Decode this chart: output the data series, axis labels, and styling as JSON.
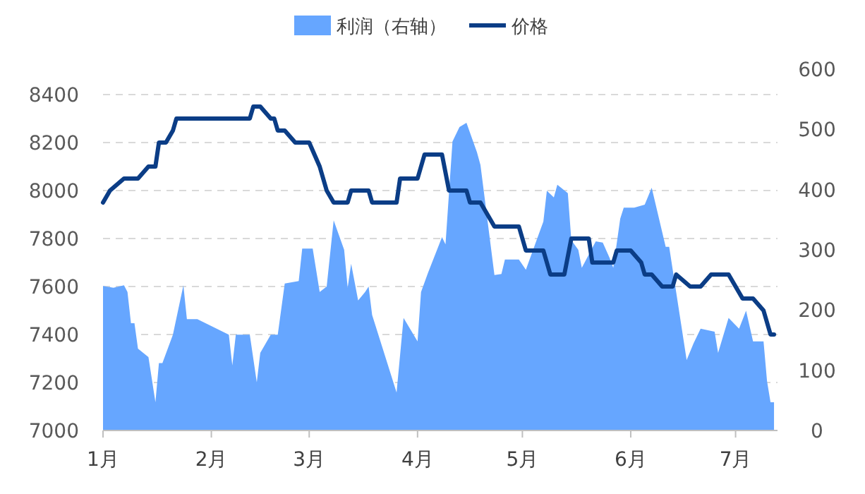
{
  "chart_data": {
    "type": "line",
    "legend": "top",
    "grid": "y",
    "xlim": [
      "--01-01",
      "--07-13"
    ],
    "xticks": [
      {
        "value": "--01-01",
        "label": "1月"
      },
      {
        "value": "--02-01",
        "label": "2月"
      },
      {
        "value": "--03-01",
        "label": "3月"
      },
      {
        "value": "--04-01",
        "label": "4月"
      },
      {
        "value": "--05-01",
        "label": "5月"
      },
      {
        "value": "--06-01",
        "label": "6月"
      },
      {
        "value": "--07-01",
        "label": "7月"
      }
    ],
    "ylim": [
      7000,
      8400
    ],
    "yticks": [
      7000,
      7200,
      7400,
      7600,
      7800,
      8000,
      8200,
      8400
    ],
    "y2lim": [
      0,
      600
    ],
    "y2ticks": [
      0,
      100,
      200,
      300,
      400,
      500,
      600
    ],
    "series": [
      {
        "name": "利润（右轴）",
        "type": "area",
        "axis": "y2",
        "color": "#66a6ff",
        "x": [
          "--01-01",
          "--01-04",
          "--01-07",
          "--01-08",
          "--01-09",
          "--01-10",
          "--01-11",
          "--01-14",
          "--01-16",
          "--01-17",
          "--01-18",
          "--01-21",
          "--01-24",
          "--01-25",
          "--01-28",
          "--02-06",
          "--02-07",
          "--02-08",
          "--02-12",
          "--02-14",
          "--02-15",
          "--02-18",
          "--02-20",
          "--02-22",
          "--02-26",
          "--02-27",
          "--03-02",
          "--03-04",
          "--03-06",
          "--03-08",
          "--03-11",
          "--03-12",
          "--03-13",
          "--03-15",
          "--03-17",
          "--03-18",
          "--03-19",
          "--03-26",
          "--03-28",
          "--04-01",
          "--04-02",
          "--04-04",
          "--04-08",
          "--04-09",
          "--04-11",
          "--04-13",
          "--04-15",
          "--04-18",
          "--04-19",
          "--04-23",
          "--04-25",
          "--04-26",
          "--04-30",
          "--05-02",
          "--05-07",
          "--05-08",
          "--05-10",
          "--05-11",
          "--05-14",
          "--05-15",
          "--05-17",
          "--05-18",
          "--05-22",
          "--05-24",
          "--05-26",
          "--05-27",
          "--05-29",
          "--05-30",
          "--06-02",
          "--06-05",
          "--06-07",
          "--06-11",
          "--06-12",
          "--06-17",
          "--06-19",
          "--06-21",
          "--06-25",
          "--06-26",
          "--06-29",
          "--07-02",
          "--07-04",
          "--07-06",
          "--07-09",
          "--07-10",
          "--07-11",
          "--07-12"
        ],
        "values": [
          240,
          237,
          241,
          230,
          178,
          178,
          136,
          122,
          47,
          112,
          112,
          159,
          241,
          185,
          185,
          159,
          108,
          159,
          159,
          80,
          129,
          159,
          159,
          244,
          248,
          302,
          302,
          230,
          239,
          349,
          300,
          237,
          277,
          216,
          230,
          239,
          192,
          63,
          187,
          148,
          230,
          262,
          321,
          309,
          480,
          504,
          511,
          462,
          441,
          258,
          260,
          284,
          284,
          267,
          347,
          398,
          387,
          408,
          394,
          316,
          300,
          270,
          314,
          312,
          286,
          270,
          352,
          370,
          370,
          375,
          403,
          305,
          305,
          117,
          145,
          169,
          164,
          129,
          187,
          169,
          199,
          148,
          148,
          82,
          47,
          47
        ]
      },
      {
        "name": "价格",
        "color": "#0b3d86",
        "x": [
          "--01-01",
          "--01-03",
          "--01-07",
          "--01-11",
          "--01-14",
          "--01-16",
          "--01-17",
          "--01-19",
          "--01-21",
          "--01-22",
          "--02-12",
          "--02-13",
          "--02-15",
          "--02-18",
          "--02-19",
          "--02-20",
          "--02-22",
          "--02-25",
          "--03-01",
          "--03-04",
          "--03-06",
          "--03-08",
          "--03-12",
          "--03-13",
          "--03-18",
          "--03-19",
          "--03-26",
          "--03-27",
          "--04-01",
          "--04-03",
          "--04-08",
          "--04-10",
          "--04-15",
          "--04-16",
          "--04-19",
          "--04-23",
          "--04-30",
          "--05-02",
          "--05-07",
          "--05-09",
          "--05-13",
          "--05-15",
          "--05-20",
          "--05-21",
          "--05-27",
          "--05-28",
          "--06-01",
          "--06-04",
          "--06-05",
          "--06-07",
          "--06-10",
          "--06-13",
          "--06-14",
          "--06-18",
          "--06-21",
          "--06-24",
          "--06-29",
          "--07-03",
          "--07-06",
          "--07-09",
          "--07-11",
          "--07-12"
        ],
        "values": [
          7950,
          8000,
          8050,
          8050,
          8100,
          8100,
          8200,
          8200,
          8250,
          8300,
          8300,
          8350,
          8350,
          8300,
          8300,
          8250,
          8250,
          8200,
          8200,
          8100,
          8000,
          7950,
          7950,
          8000,
          8000,
          7950,
          7950,
          8050,
          8050,
          8150,
          8150,
          8000,
          8000,
          7950,
          7950,
          7850,
          7850,
          7750,
          7750,
          7650,
          7650,
          7800,
          7800,
          7700,
          7700,
          7750,
          7750,
          7700,
          7650,
          7650,
          7600,
          7600,
          7650,
          7600,
          7600,
          7650,
          7650,
          7550,
          7550,
          7500,
          7400,
          7400
        ]
      }
    ]
  }
}
